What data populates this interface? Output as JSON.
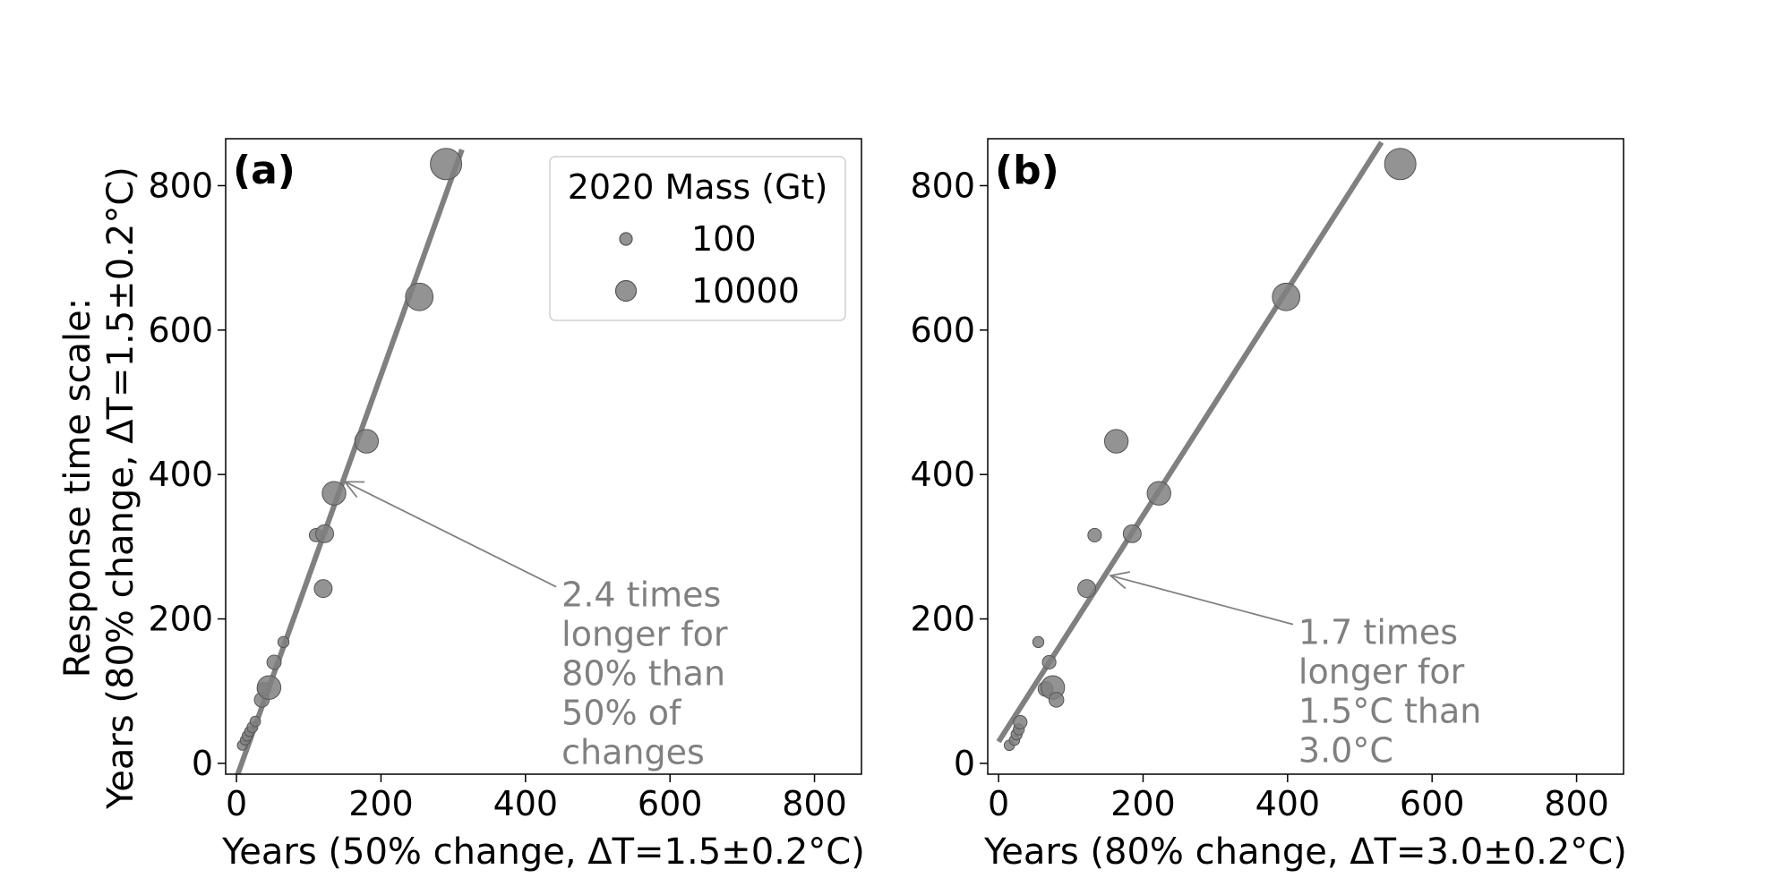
{
  "chart_data": [
    {
      "type": "scatter",
      "panel_label": "(a)",
      "xlabel": "Years (50% change, ΔT=1.5±0.2°C)",
      "ylabel": "Response time scale:\nYears (80% change, ΔT=1.5±0.2°C)",
      "xlim": [
        -15,
        865
      ],
      "ylim": [
        -15,
        865
      ],
      "xticks": [
        0,
        200,
        400,
        600,
        800
      ],
      "yticks": [
        0,
        200,
        400,
        600,
        800
      ],
      "fit_line": {
        "x": [
          0,
          312
        ],
        "y": [
          -20,
          850
        ]
      },
      "points": [
        {
          "x": 8,
          "y": 25,
          "mass": 30
        },
        {
          "x": 12,
          "y": 32,
          "mass": 40
        },
        {
          "x": 15,
          "y": 38,
          "mass": 60
        },
        {
          "x": 18,
          "y": 44,
          "mass": 50
        },
        {
          "x": 22,
          "y": 50,
          "mass": 70
        },
        {
          "x": 26,
          "y": 58,
          "mass": 60
        },
        {
          "x": 35,
          "y": 88,
          "mass": 300
        },
        {
          "x": 38,
          "y": 103,
          "mass": 200
        },
        {
          "x": 45,
          "y": 105,
          "mass": 2500
        },
        {
          "x": 52,
          "y": 140,
          "mass": 250
        },
        {
          "x": 65,
          "y": 168,
          "mass": 80
        },
        {
          "x": 110,
          "y": 316,
          "mass": 180
        },
        {
          "x": 120,
          "y": 242,
          "mass": 700
        },
        {
          "x": 122,
          "y": 318,
          "mass": 700
        },
        {
          "x": 135,
          "y": 374,
          "mass": 2500
        },
        {
          "x": 180,
          "y": 446,
          "mass": 2500
        },
        {
          "x": 253,
          "y": 646,
          "mass": 5000
        },
        {
          "x": 290,
          "y": 830,
          "mass": 9000
        }
      ],
      "legend": {
        "title": "2020 Mass (Gt)",
        "entries": [
          {
            "label": "100",
            "mass": 100
          },
          {
            "label": "10000",
            "mass": 10000
          }
        ],
        "position": "top-right"
      },
      "annotation": {
        "lines": [
          "2.4 times",
          "longer for",
          "80% than",
          "50% of",
          "changes"
        ],
        "arrow_to": {
          "x": 150,
          "y": 390
        },
        "text_at": {
          "x": 450,
          "y": 232
        }
      }
    },
    {
      "type": "scatter",
      "panel_label": "(b)",
      "xlabel": "Years (80% change, ΔT=3.0±0.2°C)",
      "xlim": [
        -15,
        865
      ],
      "ylim": [
        -15,
        865
      ],
      "xticks": [
        0,
        200,
        400,
        600,
        800
      ],
      "yticks": [
        0,
        200,
        400,
        600,
        800
      ],
      "fit_line": {
        "x": [
          0,
          530
        ],
        "y": [
          30,
          860
        ]
      },
      "points": [
        {
          "x": 15,
          "y": 25,
          "mass": 60
        },
        {
          "x": 22,
          "y": 32,
          "mass": 60
        },
        {
          "x": 25,
          "y": 40,
          "mass": 80
        },
        {
          "x": 28,
          "y": 47,
          "mass": 80
        },
        {
          "x": 30,
          "y": 57,
          "mass": 200
        },
        {
          "x": 55,
          "y": 168,
          "mass": 80
        },
        {
          "x": 65,
          "y": 103,
          "mass": 300
        },
        {
          "x": 70,
          "y": 140,
          "mass": 200
        },
        {
          "x": 75,
          "y": 105,
          "mass": 2500
        },
        {
          "x": 80,
          "y": 88,
          "mass": 300
        },
        {
          "x": 122,
          "y": 242,
          "mass": 700
        },
        {
          "x": 133,
          "y": 316,
          "mass": 200
        },
        {
          "x": 163,
          "y": 446,
          "mass": 2500
        },
        {
          "x": 185,
          "y": 318,
          "mass": 700
        },
        {
          "x": 222,
          "y": 374,
          "mass": 2500
        },
        {
          "x": 398,
          "y": 646,
          "mass": 5000
        },
        {
          "x": 556,
          "y": 830,
          "mass": 9000
        }
      ],
      "annotation": {
        "lines": [
          "1.7 times",
          "longer for",
          "1.5°C than",
          "3.0°C"
        ],
        "arrow_to": {
          "x": 155,
          "y": 260
        },
        "text_at": {
          "x": 415,
          "y": 180
        }
      }
    }
  ]
}
